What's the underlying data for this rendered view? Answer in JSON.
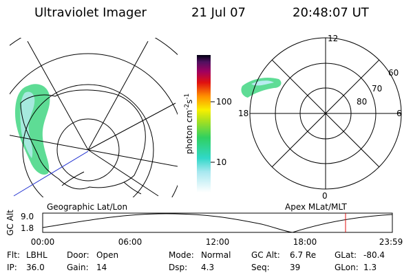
{
  "header": {
    "instrument": "Ultraviolet Imager",
    "date": "21 Jul 07",
    "time": "20:48:07 UT"
  },
  "colorbar": {
    "unit": {
      "base": "photon cm",
      "exp1": "-2",
      "mid": "s",
      "exp2": "-1"
    },
    "ticks": [
      "100",
      "10"
    ]
  },
  "geographic_panel": {
    "label": "Geographic Lat/Lon"
  },
  "magnetic_panel": {
    "label": "Apex MLat/MLT",
    "mlt_labels": [
      "12",
      "18",
      "6",
      "0"
    ],
    "mlat_labels": [
      "60",
      "70",
      "80"
    ]
  },
  "timeline": {
    "axis_label": "GC Alt",
    "y_labels": [
      "9.0",
      "1.8"
    ],
    "time_labels": [
      "00:00",
      "06:00",
      "12:00",
      "18:00",
      "23:59"
    ]
  },
  "status": [
    [
      {
        "label": "Flt:",
        "value": "LBHL"
      },
      {
        "label": "Door:",
        "value": "Open"
      },
      {
        "label": "Mode:",
        "value": "Normal"
      },
      {
        "label": "GC Alt:",
        "value": "6.7 Re"
      },
      {
        "label": "GLat:",
        "value": "-80.4"
      }
    ],
    [
      {
        "label": "IP:",
        "value": "36.0"
      },
      {
        "label": "Gain:",
        "value": "14"
      },
      {
        "label": "Dsp:",
        "value": "4.3"
      },
      {
        "label": "Seq:",
        "value": "39"
      },
      {
        "label": "GLon:",
        "value": "1.3"
      }
    ]
  ]
}
